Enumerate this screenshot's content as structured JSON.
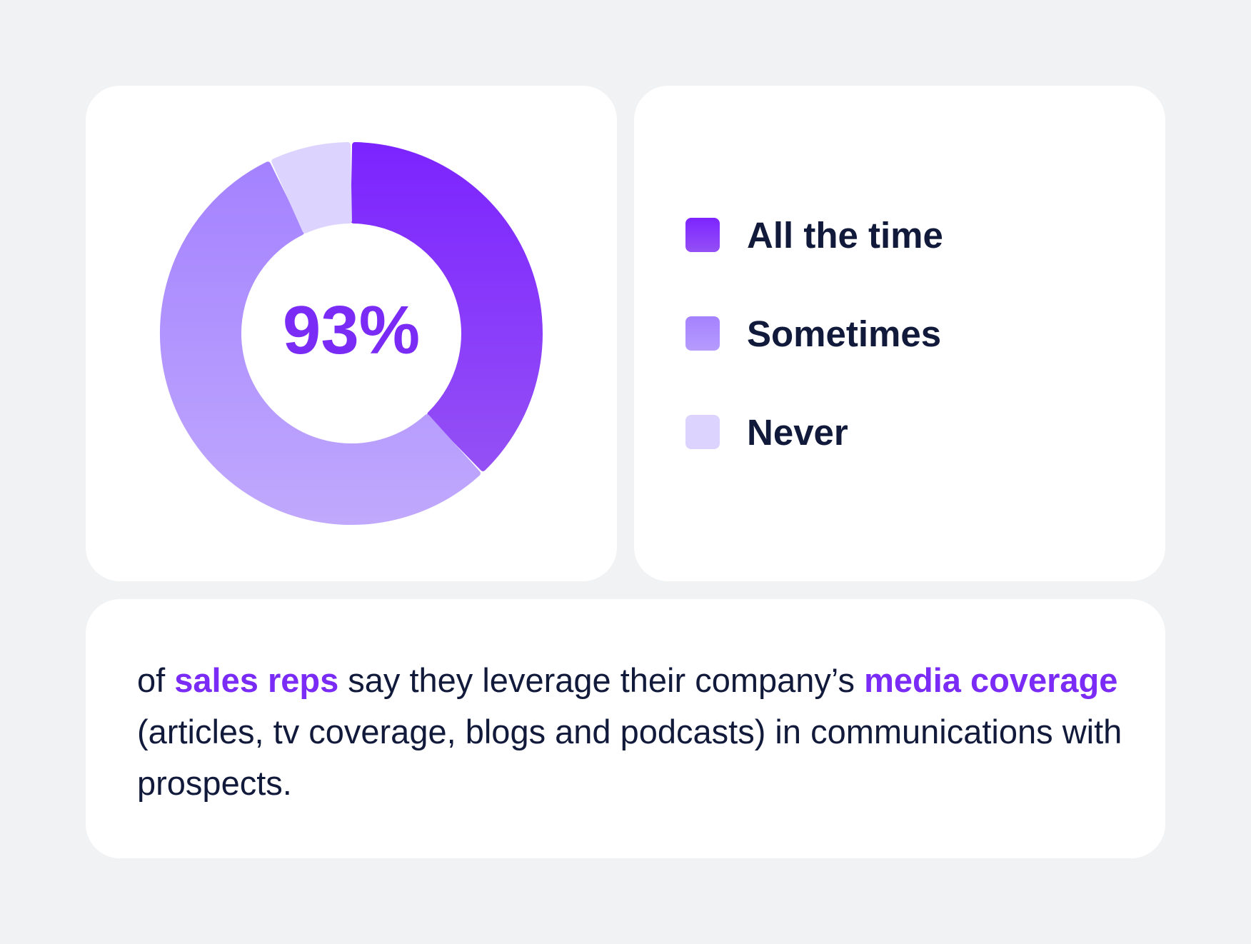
{
  "chart_data": {
    "type": "pie",
    "style": "donut",
    "center_label": "93%",
    "title": "",
    "slices": [
      {
        "label": "All the time",
        "value": 38,
        "color": "#7c24ff"
      },
      {
        "label": "Sometimes",
        "value": 55,
        "color": "#ab8bff"
      },
      {
        "label": "Never",
        "value": 7,
        "color": "#ddd3ff"
      }
    ],
    "legend_position": "right"
  },
  "caption": {
    "part1": "of ",
    "highlight1": "sales reps",
    "part2": " say they leverage their company’s ",
    "highlight2": "media coverage",
    "part3": " (articles, tv coverage, blogs and podcasts) in communications with prospects."
  },
  "colors": {
    "background": "#f1f2f4",
    "card": "#ffffff",
    "accent": "#7a2cf6",
    "text": "#111a3b"
  }
}
